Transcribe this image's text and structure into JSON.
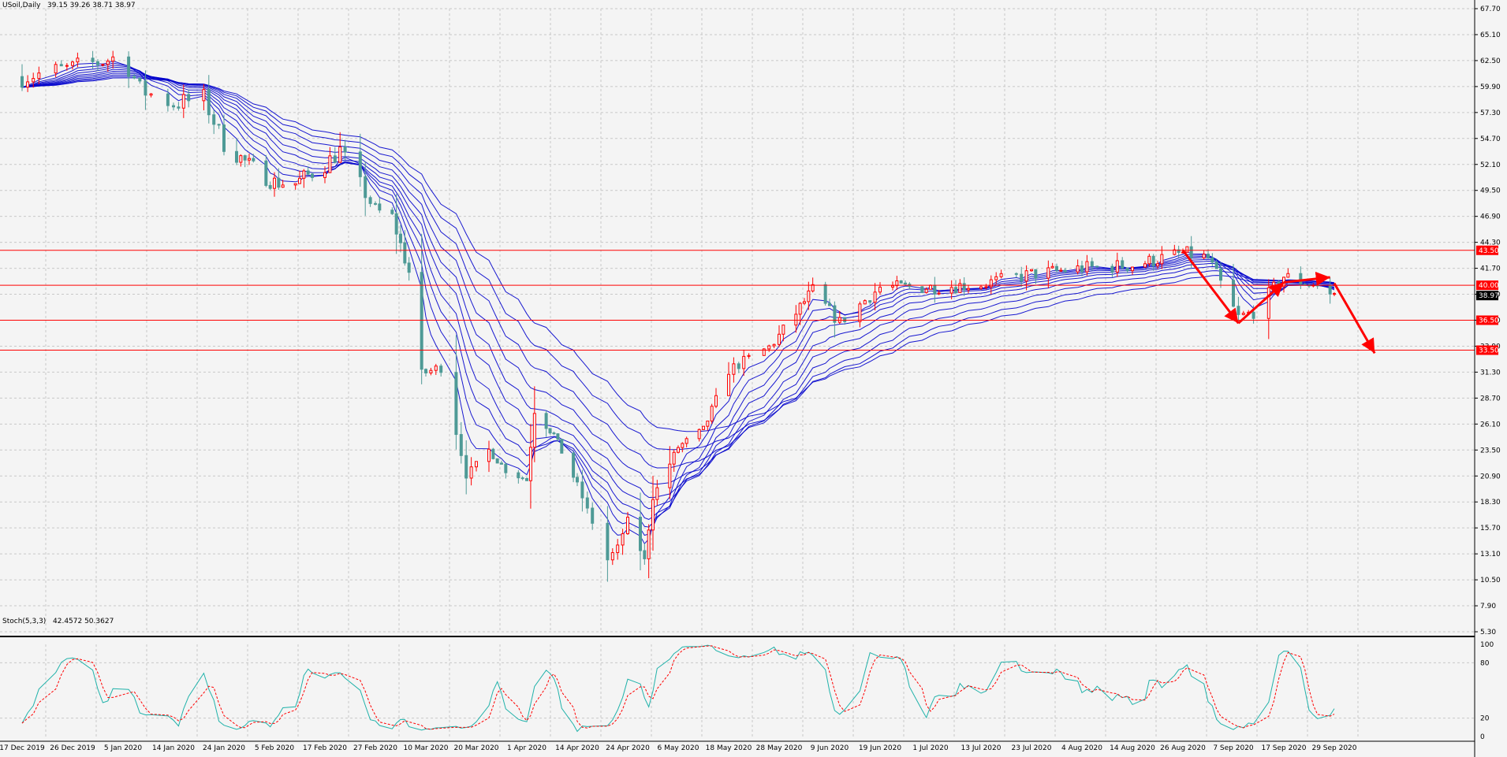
{
  "header": {
    "symbol": "USoil,Daily",
    "ohlc": "39.15 39.26 38.71 38.97"
  },
  "stoch_header": {
    "name": "Stoch(5,3,3)",
    "values": "42.4572 50.3627"
  },
  "colors": {
    "background": "#f4f4f4",
    "grid": "#c8c8c8",
    "bull_candle": "#ff0000",
    "bear_candle": "#4e9a96",
    "ma_ribbon": "#0000cc",
    "level_line": "#ff0000",
    "stoch_main": "#20b2aa",
    "stoch_signal": "#ff0000"
  },
  "price_axis": [
    "67.70",
    "65.10",
    "62.50",
    "59.90",
    "57.30",
    "54.70",
    "52.10",
    "49.50",
    "46.90",
    "44.30",
    "41.70",
    "39.10",
    "36.50",
    "33.90",
    "31.30",
    "28.70",
    "26.10",
    "23.50",
    "20.90",
    "18.30",
    "15.70",
    "13.10",
    "10.50",
    "7.90",
    "5.30"
  ],
  "stoch_axis": [
    "100",
    "80",
    "20",
    "0"
  ],
  "date_axis": [
    "17 Dec 2019",
    "26 Dec 2019",
    "5 Jan 2020",
    "14 Jan 2020",
    "24 Jan 2020",
    "5 Feb 2020",
    "17 Feb 2020",
    "27 Feb 2020",
    "10 Mar 2020",
    "20 Mar 2020",
    "1 Apr 2020",
    "14 Apr 2020",
    "24 Apr 2020",
    "6 May 2020",
    "18 May 2020",
    "28 May 2020",
    "9 Jun 2020",
    "19 Jun 2020",
    "1 Jul 2020",
    "13 Jul 2020",
    "23 Jul 2020",
    "4 Aug 2020",
    "14 Aug 2020",
    "26 Aug 2020",
    "7 Sep 2020",
    "17 Sep 2020",
    "29 Sep 2020"
  ],
  "levels": [
    {
      "label": "43.50",
      "value": 43.5
    },
    {
      "label": "40.00",
      "value": 40.0
    },
    {
      "label": "36.50",
      "value": 36.5
    },
    {
      "label": "33.50",
      "value": 33.5
    }
  ],
  "current_price": {
    "label": "38.97",
    "value": 38.97
  },
  "chart_data": {
    "type": "candlestick",
    "instrument": "USoil",
    "timeframe": "Daily",
    "ylim": [
      5.3,
      67.7
    ],
    "close_path": [
      {
        "date": "2019-12-17",
        "close": 60.9
      },
      {
        "date": "2019-12-26",
        "close": 61.7
      },
      {
        "date": "2020-01-05",
        "close": 63.0
      },
      {
        "date": "2020-01-08",
        "close": 59.6
      },
      {
        "date": "2020-01-14",
        "close": 58.2
      },
      {
        "date": "2020-01-20",
        "close": 58.7
      },
      {
        "date": "2020-01-24",
        "close": 54.2
      },
      {
        "date": "2020-01-30",
        "close": 52.0
      },
      {
        "date": "2020-02-05",
        "close": 50.3
      },
      {
        "date": "2020-02-10",
        "close": 50.2
      },
      {
        "date": "2020-02-17",
        "close": 52.1
      },
      {
        "date": "2020-02-20",
        "close": 53.5
      },
      {
        "date": "2020-02-27",
        "close": 47.5
      },
      {
        "date": "2020-03-02",
        "close": 46.8
      },
      {
        "date": "2020-03-06",
        "close": 41.3
      },
      {
        "date": "2020-03-09",
        "close": 31.1
      },
      {
        "date": "2020-03-13",
        "close": 31.8
      },
      {
        "date": "2020-03-18",
        "close": 21.0
      },
      {
        "date": "2020-03-23",
        "close": 23.5
      },
      {
        "date": "2020-03-27",
        "close": 21.5
      },
      {
        "date": "2020-04-01",
        "close": 20.5
      },
      {
        "date": "2020-04-03",
        "close": 27.5
      },
      {
        "date": "2020-04-08",
        "close": 25.0
      },
      {
        "date": "2020-04-14",
        "close": 20.0
      },
      {
        "date": "2020-04-20",
        "close": 12.5
      },
      {
        "date": "2020-04-22",
        "close": 13.8
      },
      {
        "date": "2020-04-24",
        "close": 16.5
      },
      {
        "date": "2020-04-28",
        "close": 12.5
      },
      {
        "date": "2020-04-30",
        "close": 18.8
      },
      {
        "date": "2020-05-06",
        "close": 23.8
      },
      {
        "date": "2020-05-12",
        "close": 25.5
      },
      {
        "date": "2020-05-18",
        "close": 31.5
      },
      {
        "date": "2020-05-26",
        "close": 33.8
      },
      {
        "date": "2020-06-05",
        "close": 39.5
      },
      {
        "date": "2020-06-11",
        "close": 36.3
      },
      {
        "date": "2020-06-19",
        "close": 39.8
      },
      {
        "date": "2020-07-01",
        "close": 39.8
      },
      {
        "date": "2020-07-13",
        "close": 40.1
      },
      {
        "date": "2020-07-23",
        "close": 41.1
      },
      {
        "date": "2020-08-04",
        "close": 41.7
      },
      {
        "date": "2020-08-14",
        "close": 42.0
      },
      {
        "date": "2020-08-26",
        "close": 43.2
      },
      {
        "date": "2020-09-01",
        "close": 42.7
      },
      {
        "date": "2020-09-08",
        "close": 36.8
      },
      {
        "date": "2020-09-11",
        "close": 37.3
      },
      {
        "date": "2020-09-17",
        "close": 40.9
      },
      {
        "date": "2020-09-24",
        "close": 40.0
      },
      {
        "date": "2020-09-29",
        "close": 38.97
      }
    ],
    "indicator": {
      "name": "Stoch(5,3,3)",
      "main_last": 42.4572,
      "signal_last": 50.3627,
      "ylim": [
        0,
        100
      ],
      "levels": [
        20,
        80
      ]
    }
  }
}
